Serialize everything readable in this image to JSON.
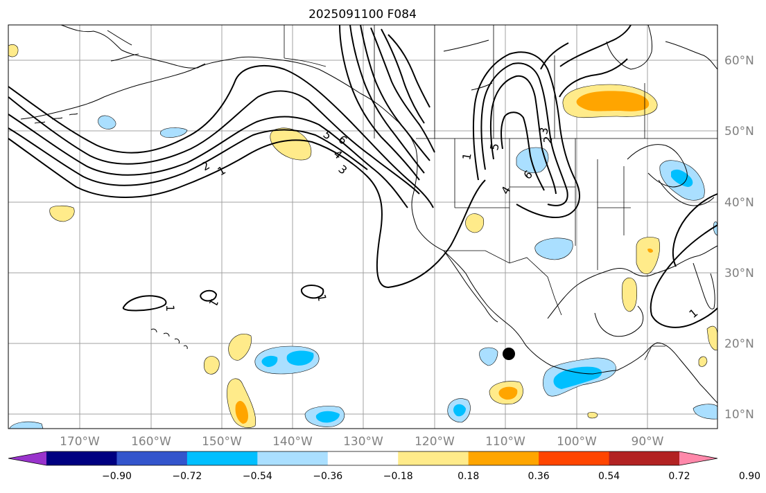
{
  "title": "2025091100 F084",
  "lat_labels": [
    "60°N",
    "50°N",
    "40°N",
    "30°N",
    "20°N",
    "10°N"
  ],
  "lon_labels": [
    "170°W",
    "160°W",
    "150°W",
    "140°W",
    "130°W",
    "120°W",
    "110°W",
    "100°W",
    "90°W"
  ],
  "colorbar": {
    "tick_labels": [
      "−0.90",
      "−0.72",
      "−0.54",
      "−0.36",
      "−0.18",
      "0.18",
      "0.36",
      "0.54",
      "0.72",
      "0.90"
    ],
    "colors": [
      "#9933cc",
      "#000080",
      "#3355cc",
      "#00bfff",
      "#aadfff",
      "#ffffff",
      "#ffeb8a",
      "#ffa500",
      "#ff4500",
      "#b22222",
      "#ff88aa"
    ]
  },
  "contour_labels": [
    "1",
    "2",
    "3",
    "4",
    "5",
    "6",
    "1",
    "2",
    "3",
    "4",
    "5",
    "6",
    "1",
    "1",
    "1",
    "1"
  ],
  "shading_colors": {
    "light_blue": "#aadfff",
    "blue": "#00bfff",
    "light_yellow": "#ffeb8a",
    "orange": "#ffa500"
  },
  "marker": "black-dot"
}
